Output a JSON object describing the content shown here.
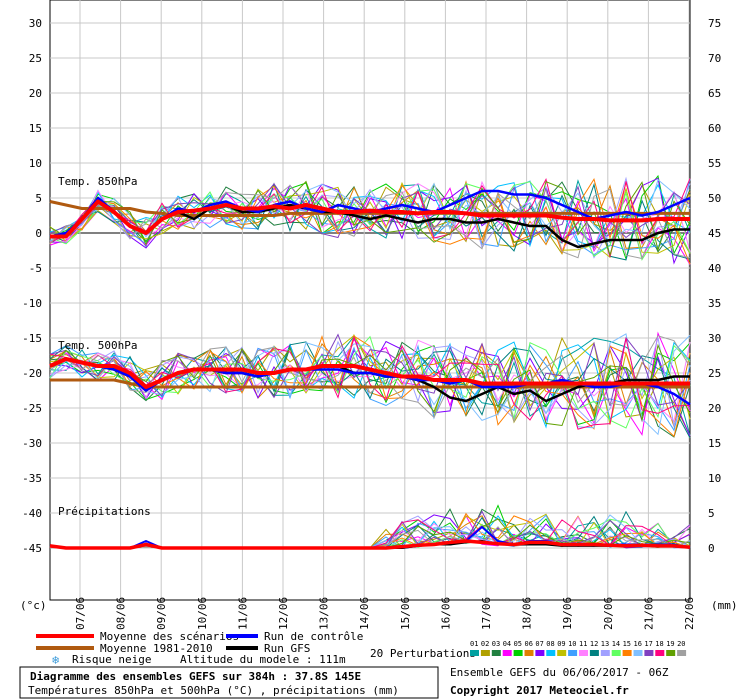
{
  "chart_data": {
    "type": "line",
    "left_axis": {
      "unit": "(°c)",
      "range": [
        -50,
        30
      ],
      "ticks": [
        30,
        25,
        20,
        15,
        10,
        5,
        0,
        -5,
        -10,
        -15,
        -20,
        -25,
        -30,
        -35,
        -40,
        -45
      ]
    },
    "right_axis": {
      "unit": "(mm)",
      "range": [
        -5,
        75
      ],
      "ticks": [
        75,
        70,
        65,
        60,
        55,
        50,
        45,
        40,
        35,
        30,
        25,
        20,
        15,
        10,
        5,
        0
      ]
    },
    "x_dates": [
      "07/06",
      "08/06",
      "09/06",
      "10/06",
      "11/06",
      "12/06",
      "13/06",
      "14/06",
      "15/06",
      "16/06",
      "17/06",
      "18/06",
      "19/06",
      "20/06",
      "21/06",
      "22/06"
    ],
    "section_labels": {
      "t850": "Temp. 850hPa",
      "t500": "Temp. 500hPa",
      "precip": "Précipitations"
    },
    "series_colors": {
      "mean": "#ff0000",
      "climo": "#b05a10",
      "control": "#0000ff",
      "gfs": "#000000"
    },
    "perturbation_colors": [
      "#00a0a0",
      "#b0a000",
      "#208040",
      "#ff00ff",
      "#00d000",
      "#e08000",
      "#8000ff",
      "#00c0ff",
      "#c0c000",
      "#40a0ff",
      "#ff80ff",
      "#008080",
      "#a0a0ff",
      "#60ff60",
      "#ff8000",
      "#80c0ff",
      "#8040c0",
      "#ff0080",
      "#60a000",
      "#a0a0a0"
    ],
    "perturbation_labels": [
      "01",
      "02",
      "03",
      "04",
      "05",
      "06",
      "07",
      "08",
      "09",
      "10",
      "11",
      "12",
      "13",
      "14",
      "15",
      "16",
      "17",
      "18",
      "19",
      "20"
    ],
    "t850": {
      "mean": [
        -0.5,
        -0.5,
        2,
        4.5,
        3,
        1,
        0,
        2,
        3,
        3.2,
        3.5,
        4,
        3.5,
        3.5,
        3.8,
        3.5,
        4,
        3.5,
        3,
        3,
        3.2,
        3,
        3,
        2.8,
        3,
        3,
        2.8,
        2.5,
        2.5,
        2.5,
        2.5,
        2.5,
        2.2,
        2,
        2,
        1.8,
        1.8,
        1.8,
        2,
        2,
        2
      ],
      "climo": [
        4.5,
        4,
        3.5,
        3.5,
        3.5,
        3.5,
        3,
        2.8,
        2.5,
        2.5,
        2.5,
        2.5,
        2.5,
        2.5,
        2.5,
        2.8,
        2.8,
        2.8,
        2.8,
        2.8,
        2.8,
        2.8,
        2.8,
        2.8,
        2.8,
        2.8,
        2.8,
        2.8,
        2.8,
        2.8,
        2.8,
        2.8,
        2.8,
        2.8,
        2.8,
        2.8,
        2.8,
        2.8,
        2.8,
        2.8,
        2.8
      ],
      "control": [
        -0.5,
        0,
        2,
        5,
        3,
        1,
        0,
        2,
        3.5,
        3,
        4,
        4.5,
        3.5,
        3,
        4,
        4.5,
        3.5,
        3,
        4,
        3.5,
        3,
        3.5,
        4,
        3.5,
        3,
        4,
        5,
        6,
        6,
        5.5,
        5.5,
        5,
        4,
        3,
        2,
        2.5,
        3,
        2.5,
        3,
        4,
        5
      ],
      "gfs": [
        -0.5,
        -0.5,
        2,
        5,
        3,
        1,
        0,
        2,
        3,
        2,
        3.5,
        4,
        3,
        3,
        3.5,
        4,
        3.5,
        3,
        3,
        2.5,
        2,
        2.5,
        2,
        1.5,
        2,
        2,
        1.5,
        1.5,
        2,
        1.5,
        1,
        1,
        -1,
        -2,
        -1.5,
        -1,
        -1,
        -1,
        0,
        0.5,
        0.5
      ]
    },
    "t500": {
      "mean": [
        -19,
        -18,
        -18.5,
        -19,
        -19,
        -20,
        -22,
        -21,
        -20,
        -19.5,
        -19.5,
        -19.5,
        -19.5,
        -20,
        -20,
        -19.5,
        -19.5,
        -19,
        -19,
        -19,
        -19.5,
        -20,
        -20.5,
        -20.5,
        -21,
        -21,
        -21,
        -21.5,
        -21.5,
        -21.5,
        -21.5,
        -21.5,
        -21.5,
        -21.5,
        -21.5,
        -21.5,
        -21.5,
        -21.5,
        -21.5,
        -21.5,
        -21.5
      ],
      "climo": [
        -21,
        -21,
        -21,
        -21,
        -21,
        -21.5,
        -22,
        -22,
        -22,
        -22,
        -22,
        -22,
        -22,
        -22,
        -22,
        -22,
        -22,
        -22,
        -22,
        -22,
        -22,
        -22,
        -22,
        -22,
        -22,
        -22,
        -22,
        -22,
        -22,
        -22,
        -22,
        -22,
        -22,
        -22,
        -22,
        -22,
        -22,
        -22,
        -22,
        -22,
        -22
      ],
      "control": [
        -19,
        -18,
        -18.5,
        -19,
        -19.5,
        -20.5,
        -22.5,
        -21,
        -20,
        -19.5,
        -19.5,
        -20,
        -20,
        -20.5,
        -20,
        -19.5,
        -19.5,
        -19.5,
        -19.5,
        -20,
        -20,
        -20.5,
        -20.5,
        -21,
        -21,
        -21.5,
        -21,
        -22,
        -22,
        -22,
        -21.5,
        -21.5,
        -21,
        -21.5,
        -22,
        -22,
        -21.5,
        -21.5,
        -22,
        -23,
        -24.5
      ],
      "gfs": [
        -19,
        -18,
        -18.5,
        -19,
        -19.5,
        -20.5,
        -22.5,
        -21,
        -20,
        -19.5,
        -19.5,
        -20,
        -20,
        -20.5,
        -20,
        -19.5,
        -19.5,
        -19,
        -19,
        -20,
        -20,
        -20.5,
        -20.5,
        -21,
        -22,
        -23.5,
        -24,
        -23,
        -22,
        -23,
        -22.5,
        -24,
        -23,
        -22,
        -21.5,
        -21.5,
        -21,
        -21,
        -21,
        -20.5,
        -20.5
      ]
    },
    "precip_mm": {
      "mean": [
        0.3,
        0,
        0,
        0,
        0,
        0,
        0.5,
        0,
        0,
        0,
        0,
        0,
        0,
        0,
        0,
        0,
        0,
        0,
        0,
        0,
        0,
        0,
        0.2,
        0.4,
        0.5,
        0.8,
        1,
        0.8,
        0.6,
        0.5,
        0.8,
        0.8,
        0.5,
        0.5,
        0.5,
        0.4,
        0.3,
        0.4,
        0.3,
        0.3,
        0.1
      ],
      "control": [
        0.3,
        0,
        0,
        0,
        0,
        0,
        1,
        0,
        0,
        0,
        0,
        0,
        0,
        0,
        0,
        0,
        0,
        0,
        0,
        0,
        0,
        0,
        0,
        0.3,
        0.5,
        0.5,
        1,
        3,
        1,
        0.5,
        1,
        1,
        0.5,
        0.5,
        0.5,
        0.5,
        0.5,
        0.5,
        0.5,
        0.5,
        0
      ],
      "gfs": [
        0.3,
        0,
        0,
        0,
        0,
        0,
        0.5,
        0,
        0,
        0,
        0,
        0,
        0,
        0,
        0,
        0,
        0,
        0,
        0,
        0,
        0,
        0,
        0,
        0.3,
        0.5,
        0.5,
        0.8,
        1,
        0.5,
        0.5,
        0.5,
        0.5,
        0.3,
        0.3,
        0.3,
        0.3,
        0.3,
        0.3,
        0.3,
        0.3,
        0.2
      ]
    },
    "legend": {
      "mean": "Moyenne des scénarios",
      "climo": "Moyenne 1981-2010",
      "control": "Run de contrôle",
      "gfs": "Run GFS",
      "snow": "Risque neige",
      "perturbations": "20 Perturbations",
      "altitude": "Altitude du modele : 111m"
    }
  },
  "footer": {
    "title": "Diagramme des ensembles GEFS sur 384h : 37.8S 145E",
    "subtitle": "Températures 850hPa et 500hPa (°C) , précipitations (mm)",
    "run": "Ensemble GEFS du 06/06/2017 - 06Z",
    "copyright": "Copyright 2017 Meteociel.fr"
  }
}
